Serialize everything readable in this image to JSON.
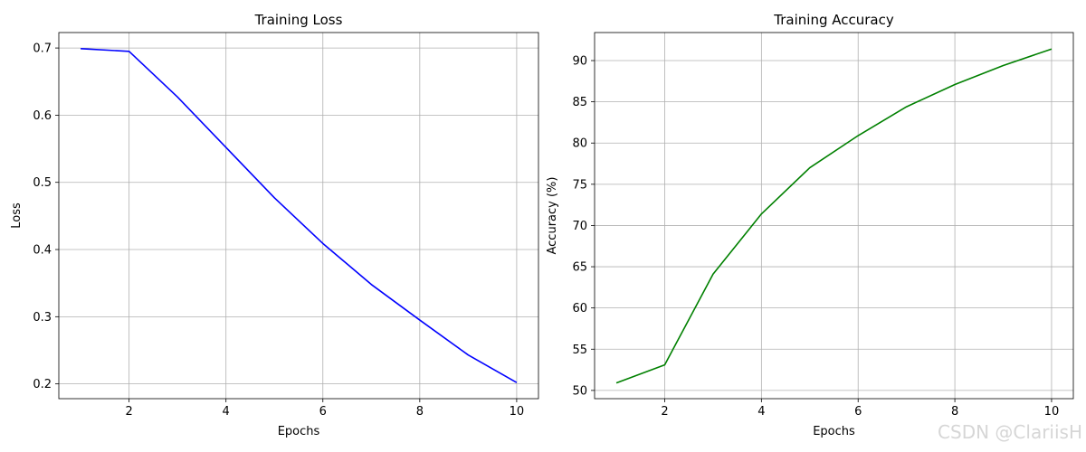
{
  "chart_data": [
    {
      "type": "line",
      "title": "Training Loss",
      "xlabel": "Epochs",
      "ylabel": "Loss",
      "x": [
        1,
        2,
        3,
        4,
        5,
        6,
        7,
        8,
        9,
        10
      ],
      "series": [
        {
          "color": "#0000ff",
          "values": [
            0.699,
            0.695,
            0.627,
            0.552,
            0.477,
            0.409,
            0.348,
            0.295,
            0.243,
            0.202
          ]
        }
      ],
      "xlim": [
        0.55,
        10.45
      ],
      "ylim": [
        0.178,
        0.723
      ],
      "xticks": [
        2,
        4,
        6,
        8,
        10
      ],
      "xtick_labels": [
        "2",
        "4",
        "6",
        "8",
        "10"
      ],
      "yticks": [
        0.2,
        0.3,
        0.4,
        0.5,
        0.6,
        0.7
      ],
      "ytick_labels": [
        "0.2",
        "0.3",
        "0.4",
        "0.5",
        "0.6",
        "0.7"
      ],
      "grid": true
    },
    {
      "type": "line",
      "title": "Training Accuracy",
      "xlabel": "Epochs",
      "ylabel": "Accuracy (%)",
      "x": [
        1,
        2,
        3,
        4,
        5,
        6,
        7,
        8,
        9,
        10
      ],
      "series": [
        {
          "color": "#008000",
          "values": [
            50.9,
            53.1,
            64.1,
            71.4,
            77.0,
            80.9,
            84.4,
            87.1,
            89.4,
            91.4
          ]
        }
      ],
      "xlim": [
        0.55,
        10.45
      ],
      "ylim": [
        49.0,
        93.4
      ],
      "xticks": [
        2,
        4,
        6,
        8,
        10
      ],
      "xtick_labels": [
        "2",
        "4",
        "6",
        "8",
        "10"
      ],
      "yticks": [
        50,
        55,
        60,
        65,
        70,
        75,
        80,
        85,
        90
      ],
      "ytick_labels": [
        "50",
        "55",
        "60",
        "65",
        "70",
        "75",
        "80",
        "85",
        "90"
      ],
      "grid": true
    }
  ],
  "watermark": "CSDN @ClariisH"
}
